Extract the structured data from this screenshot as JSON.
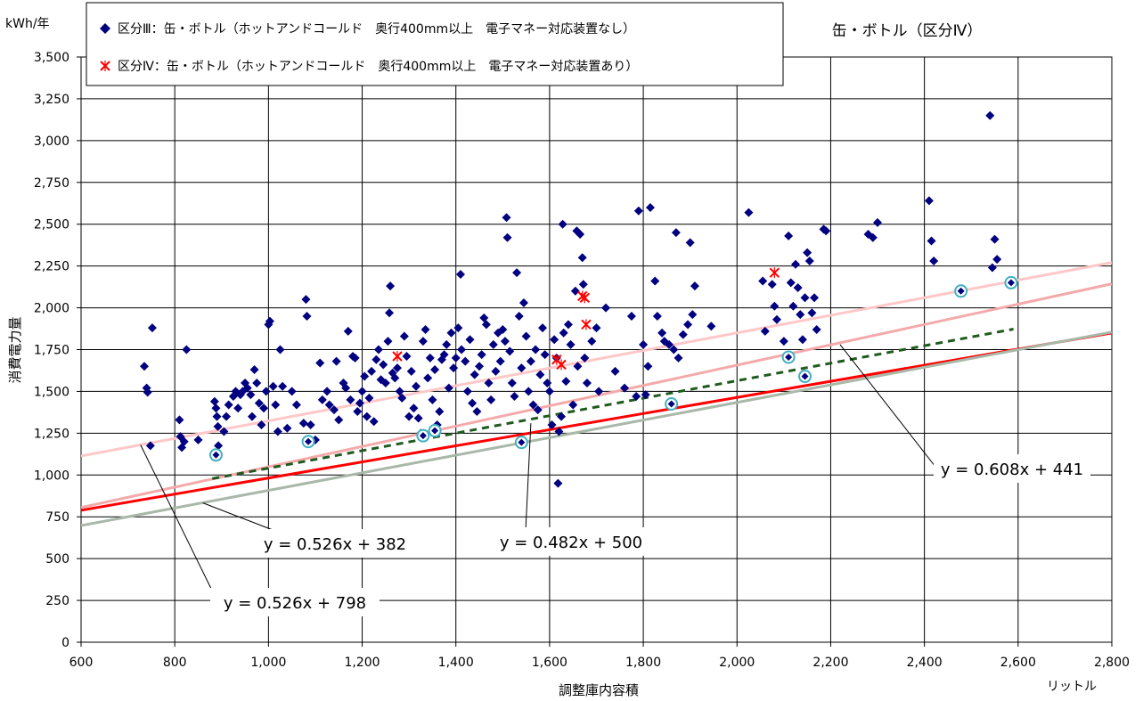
{
  "chart_data": {
    "type": "scatter",
    "title": "缶・ボトル（区分Ⅳ）",
    "xlabel": "調整庫内容積",
    "xunit": "リットル",
    "ylabel": "消費電力量",
    "yunit": "kWh/年",
    "xlim": [
      600,
      2800
    ],
    "ylim": [
      0,
      3500
    ],
    "xticks": [
      600,
      800,
      1000,
      1200,
      1400,
      1600,
      1800,
      2000,
      2200,
      2400,
      2600,
      2800
    ],
    "yticks": [
      0,
      250,
      500,
      750,
      1000,
      1250,
      1500,
      1750,
      2000,
      2250,
      2500,
      2750,
      3000,
      3250,
      3500
    ],
    "xtick_labels": [
      "600",
      "800",
      "1,000",
      "1,200",
      "1,400",
      "1,600",
      "1,800",
      "2,000",
      "2,200",
      "2,400",
      "2,600",
      "2,800"
    ],
    "ytick_labels": [
      "0",
      "250",
      "500",
      "750",
      "1,000",
      "1,250",
      "1,500",
      "1,750",
      "2,000",
      "2,250",
      "2,500",
      "2,750",
      "3,000",
      "3,250",
      "3,500"
    ],
    "grid": true,
    "legend_position": "top-left",
    "series": [
      {
        "name": "区分Ⅲ：缶・ボトル（ホットアンドコールド　奥行400mm以上　電子マネー対応装置なし）",
        "marker": "diamond",
        "color": "#000080",
        "points": [
          [
            735,
            1650
          ],
          [
            740,
            1520
          ],
          [
            742,
            1495
          ],
          [
            748,
            1175
          ],
          [
            752,
            1880
          ],
          [
            810,
            1330
          ],
          [
            812,
            1230
          ],
          [
            815,
            1165
          ],
          [
            820,
            1200
          ],
          [
            825,
            1750
          ],
          [
            850,
            1210
          ],
          [
            885,
            1440
          ],
          [
            888,
            1400
          ],
          [
            890,
            1350
          ],
          [
            892,
            1290
          ],
          [
            893,
            1175
          ],
          [
            905,
            1260
          ],
          [
            910,
            1350
          ],
          [
            915,
            1420
          ],
          [
            925,
            1470
          ],
          [
            930,
            1500
          ],
          [
            935,
            1400
          ],
          [
            940,
            1480
          ],
          [
            945,
            1500
          ],
          [
            950,
            1550
          ],
          [
            955,
            1520
          ],
          [
            962,
            1480
          ],
          [
            965,
            1350
          ],
          [
            970,
            1630
          ],
          [
            975,
            1550
          ],
          [
            980,
            1430
          ],
          [
            985,
            1300
          ],
          [
            990,
            1400
          ],
          [
            995,
            1500
          ],
          [
            1000,
            1900
          ],
          [
            1003,
            1920
          ],
          [
            1010,
            1530
          ],
          [
            1015,
            1420
          ],
          [
            1020,
            1260
          ],
          [
            1025,
            1750
          ],
          [
            1030,
            1530
          ],
          [
            1040,
            1280
          ],
          [
            1050,
            1500
          ],
          [
            1060,
            1420
          ],
          [
            1075,
            1310
          ],
          [
            1080,
            2050
          ],
          [
            1082,
            1950
          ],
          [
            1090,
            1300
          ],
          [
            1100,
            1210
          ],
          [
            1110,
            1670
          ],
          [
            1115,
            1450
          ],
          [
            1125,
            1500
          ],
          [
            1130,
            1420
          ],
          [
            1140,
            1390
          ],
          [
            1145,
            1680
          ],
          [
            1150,
            1330
          ],
          [
            1160,
            1550
          ],
          [
            1165,
            1520
          ],
          [
            1170,
            1860
          ],
          [
            1175,
            1450
          ],
          [
            1180,
            1710
          ],
          [
            1185,
            1700
          ],
          [
            1190,
            1380
          ],
          [
            1195,
            1430
          ],
          [
            1200,
            1500
          ],
          [
            1205,
            1590
          ],
          [
            1210,
            1350
          ],
          [
            1215,
            1460
          ],
          [
            1220,
            1620
          ],
          [
            1225,
            1320
          ],
          [
            1230,
            1690
          ],
          [
            1235,
            1750
          ],
          [
            1240,
            1570
          ],
          [
            1245,
            1660
          ],
          [
            1250,
            1550
          ],
          [
            1255,
            1800
          ],
          [
            1258,
            1970
          ],
          [
            1260,
            2130
          ],
          [
            1265,
            1610
          ],
          [
            1270,
            1580
          ],
          [
            1275,
            1640
          ],
          [
            1280,
            1500
          ],
          [
            1285,
            1460
          ],
          [
            1290,
            1830
          ],
          [
            1295,
            1710
          ],
          [
            1300,
            1350
          ],
          [
            1305,
            1620
          ],
          [
            1310,
            1400
          ],
          [
            1315,
            1530
          ],
          [
            1320,
            1340
          ],
          [
            1325,
            1250
          ],
          [
            1330,
            1800
          ],
          [
            1335,
            1870
          ],
          [
            1340,
            1580
          ],
          [
            1345,
            1700
          ],
          [
            1350,
            1450
          ],
          [
            1355,
            1630
          ],
          [
            1360,
            1300
          ],
          [
            1365,
            1380
          ],
          [
            1370,
            1690
          ],
          [
            1375,
            1720
          ],
          [
            1380,
            1780
          ],
          [
            1385,
            1520
          ],
          [
            1390,
            1850
          ],
          [
            1395,
            1640
          ],
          [
            1400,
            1700
          ],
          [
            1405,
            1880
          ],
          [
            1410,
            2200
          ],
          [
            1412,
            1750
          ],
          [
            1420,
            1680
          ],
          [
            1425,
            1500
          ],
          [
            1430,
            1810
          ],
          [
            1435,
            1430
          ],
          [
            1440,
            1600
          ],
          [
            1445,
            1380
          ],
          [
            1450,
            1650
          ],
          [
            1455,
            1720
          ],
          [
            1460,
            1940
          ],
          [
            1465,
            1900
          ],
          [
            1470,
            1550
          ],
          [
            1475,
            1450
          ],
          [
            1480,
            1780
          ],
          [
            1485,
            1620
          ],
          [
            1490,
            1850
          ],
          [
            1495,
            1680
          ],
          [
            1500,
            1870
          ],
          [
            1505,
            1800
          ],
          [
            1508,
            2540
          ],
          [
            1510,
            2420
          ],
          [
            1515,
            1740
          ],
          [
            1520,
            1550
          ],
          [
            1525,
            1470
          ],
          [
            1530,
            2210
          ],
          [
            1535,
            1950
          ],
          [
            1540,
            1640
          ],
          [
            1545,
            2030
          ],
          [
            1550,
            1830
          ],
          [
            1555,
            1500
          ],
          [
            1560,
            1680
          ],
          [
            1565,
            1420
          ],
          [
            1570,
            1750
          ],
          [
            1575,
            1390
          ],
          [
            1580,
            1600
          ],
          [
            1585,
            1880
          ],
          [
            1590,
            1720
          ],
          [
            1595,
            1550
          ],
          [
            1600,
            1500
          ],
          [
            1605,
            1300
          ],
          [
            1610,
            1810
          ],
          [
            1615,
            1700
          ],
          [
            1618,
            950
          ],
          [
            1620,
            1260
          ],
          [
            1625,
            1350
          ],
          [
            1628,
            2500
          ],
          [
            1630,
            1850
          ],
          [
            1635,
            1560
          ],
          [
            1640,
            1900
          ],
          [
            1645,
            1780
          ],
          [
            1650,
            1420
          ],
          [
            1655,
            2100
          ],
          [
            1658,
            2460
          ],
          [
            1660,
            1650
          ],
          [
            1665,
            2440
          ],
          [
            1670,
            2300
          ],
          [
            1672,
            2140
          ],
          [
            1675,
            1700
          ],
          [
            1680,
            1550
          ],
          [
            1690,
            1800
          ],
          [
            1700,
            1880
          ],
          [
            1705,
            1500
          ],
          [
            1720,
            2000
          ],
          [
            1740,
            1620
          ],
          [
            1760,
            1520
          ],
          [
            1775,
            1950
          ],
          [
            1785,
            1470
          ],
          [
            1790,
            2580
          ],
          [
            1800,
            1780
          ],
          [
            1805,
            1480
          ],
          [
            1810,
            1650
          ],
          [
            1815,
            2600
          ],
          [
            1825,
            2160
          ],
          [
            1830,
            1950
          ],
          [
            1840,
            1850
          ],
          [
            1845,
            1800
          ],
          [
            1855,
            1780
          ],
          [
            1865,
            1750
          ],
          [
            1870,
            2450
          ],
          [
            1875,
            1700
          ],
          [
            1885,
            1840
          ],
          [
            1895,
            1900
          ],
          [
            1900,
            2390
          ],
          [
            1905,
            1960
          ],
          [
            1910,
            2130
          ],
          [
            1945,
            1890
          ],
          [
            2025,
            2570
          ],
          [
            2055,
            2160
          ],
          [
            2060,
            1860
          ],
          [
            2075,
            2140
          ],
          [
            2080,
            2010
          ],
          [
            2085,
            1930
          ],
          [
            2100,
            1800
          ],
          [
            2110,
            2430
          ],
          [
            2115,
            2150
          ],
          [
            2120,
            2010
          ],
          [
            2125,
            2260
          ],
          [
            2130,
            2120
          ],
          [
            2135,
            1960
          ],
          [
            2140,
            1810
          ],
          [
            2145,
            2060
          ],
          [
            2150,
            2330
          ],
          [
            2155,
            2280
          ],
          [
            2160,
            1970
          ],
          [
            2165,
            2060
          ],
          [
            2170,
            1870
          ],
          [
            2185,
            2470
          ],
          [
            2190,
            2460
          ],
          [
            2280,
            2440
          ],
          [
            2290,
            2420
          ],
          [
            2300,
            2510
          ],
          [
            2410,
            2640
          ],
          [
            2415,
            2400
          ],
          [
            2420,
            2280
          ],
          [
            2540,
            3150
          ],
          [
            2545,
            2240
          ],
          [
            2550,
            2410
          ],
          [
            2555,
            2290
          ]
        ]
      },
      {
        "name": "区分Ⅳ：缶・ボトル（ホットアンドコールド　奥行400mm以上　電子マネー対応装置あり）",
        "marker": "x",
        "color": "#ff0000",
        "points": [
          [
            1275,
            1710
          ],
          [
            1615,
            1690
          ],
          [
            1625,
            1660
          ],
          [
            1670,
            2070
          ],
          [
            1675,
            2060
          ],
          [
            1678,
            1900
          ],
          [
            2080,
            2210
          ]
        ]
      },
      {
        "name": "",
        "marker": "ring",
        "color": "#40b0c0",
        "points": [
          [
            888,
            1120
          ],
          [
            1085,
            1200
          ],
          [
            1330,
            1235
          ],
          [
            1355,
            1265
          ],
          [
            1540,
            1195
          ],
          [
            1860,
            1425
          ],
          [
            2110,
            1705
          ],
          [
            2145,
            1590
          ],
          [
            2478,
            2100
          ],
          [
            2585,
            2150
          ]
        ]
      }
    ],
    "lines": [
      {
        "label": "y = 0.608x + 441",
        "slope": 0.608,
        "intercept": 441,
        "x_range": [
          600,
          2800
        ],
        "color": "#f4aaaa",
        "style": "solid"
      },
      {
        "label": "y = 0.526x + 798",
        "slope": 0.526,
        "intercept": 798,
        "x_range": [
          600,
          2800
        ],
        "color": "#ffc8c8",
        "style": "solid"
      },
      {
        "label": "y = 0.482x + 500",
        "slope": 0.482,
        "intercept": 500,
        "x_range": [
          600,
          2800
        ],
        "color": "#ff0000",
        "style": "solid"
      },
      {
        "label": "y = 0.526x + 382",
        "slope": 0.526,
        "intercept": 382,
        "x_range": [
          600,
          2800
        ],
        "color": "#a9b8a9",
        "style": "solid"
      },
      {
        "label": "",
        "slope": 0.523,
        "intercept": 518,
        "x_range": [
          880,
          2590
        ],
        "color": "#1f5a1f",
        "style": "dashed"
      }
    ],
    "annotations": [
      {
        "text": "y = 0.608x + 441",
        "points_to": [
          2220,
          1780
        ]
      },
      {
        "text": "y = 0.482x + 500",
        "points_to": [
          1560,
          1310
        ]
      },
      {
        "text": "y = 0.526x + 382",
        "points_to": [
          860,
          833
        ]
      },
      {
        "text": "y = 0.526x + 798",
        "points_to": [
          727,
          1180
        ]
      }
    ]
  }
}
